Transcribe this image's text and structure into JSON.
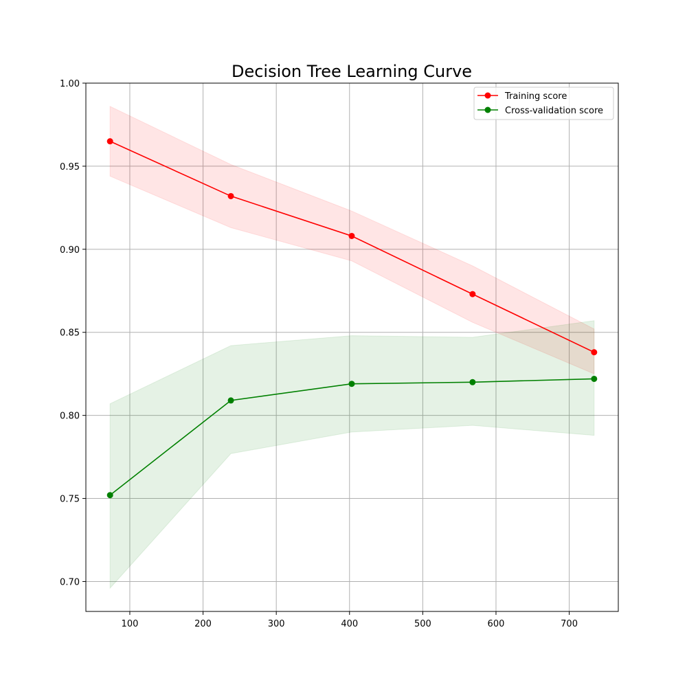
{
  "chart_data": {
    "type": "line",
    "title": "Decision Tree Learning Curve",
    "xlabel": "",
    "ylabel": "",
    "xlim": [
      40,
      767
    ],
    "ylim": [
      0.682,
      1.0
    ],
    "xticks": [
      100,
      200,
      300,
      400,
      500,
      600,
      700
    ],
    "yticks": [
      0.7,
      0.75,
      0.8,
      0.85,
      0.9,
      0.95,
      1.0
    ],
    "xtick_labels": [
      "100",
      "200",
      "300",
      "400",
      "500",
      "600",
      "700"
    ],
    "ytick_labels": [
      "0.70",
      "0.75",
      "0.80",
      "0.85",
      "0.90",
      "0.95",
      "1.00"
    ],
    "grid": true,
    "legend_position": "top-right",
    "x": [
      73,
      238,
      403,
      568,
      734
    ],
    "series": [
      {
        "name": "Training score",
        "color": "#ff0000",
        "values": [
          0.965,
          0.932,
          0.908,
          0.873,
          0.838
        ],
        "band_lower": [
          0.944,
          0.913,
          0.893,
          0.856,
          0.825
        ],
        "band_upper": [
          0.986,
          0.951,
          0.923,
          0.89,
          0.852
        ]
      },
      {
        "name": "Cross-validation score",
        "color": "#008000",
        "values": [
          0.752,
          0.809,
          0.819,
          0.82,
          0.822
        ],
        "band_lower": [
          0.696,
          0.777,
          0.79,
          0.794,
          0.788
        ],
        "band_upper": [
          0.807,
          0.842,
          0.848,
          0.847,
          0.857
        ]
      }
    ]
  }
}
